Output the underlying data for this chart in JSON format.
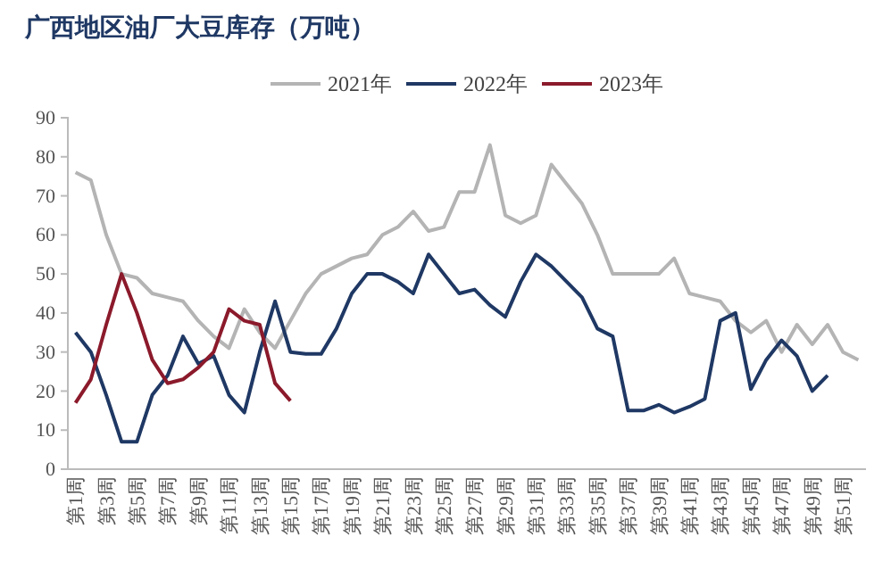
{
  "chart_data": {
    "type": "line",
    "title": "广西地区油厂大豆库存（万吨）",
    "categories": [
      "第1周",
      null,
      "第3周",
      null,
      "第5周",
      null,
      "第7周",
      null,
      "第9周",
      null,
      "第11周",
      null,
      "第13周",
      null,
      "第15周",
      null,
      "第17周",
      null,
      "第19周",
      null,
      "第21周",
      null,
      "第23周",
      null,
      "第25周",
      null,
      "第27周",
      null,
      "第29周",
      null,
      "第31周",
      null,
      "第33周",
      null,
      "第35周",
      null,
      "第37周",
      null,
      "第39周",
      null,
      "第41周",
      null,
      "第43周",
      null,
      "第45周",
      null,
      "第47周",
      null,
      "第49周",
      null,
      "第51周",
      null
    ],
    "series": [
      {
        "name": "2021年",
        "color": "#b4b4b4",
        "values": [
          76,
          74,
          60,
          50,
          49,
          45,
          44,
          43,
          38,
          34,
          31,
          41,
          35,
          31,
          38,
          45,
          50,
          52,
          54,
          55,
          60,
          62,
          66,
          61,
          62,
          71,
          71,
          83,
          65,
          63,
          65,
          78,
          73,
          68,
          60,
          50,
          50,
          50,
          50,
          54,
          45,
          44,
          43,
          38,
          35,
          38,
          30,
          37,
          32,
          37,
          30,
          28
        ]
      },
      {
        "name": "2022年",
        "color": "#1f3864",
        "values": [
          35,
          30,
          19,
          7,
          7,
          19,
          24,
          34,
          27,
          29,
          19,
          14.5,
          30,
          43,
          30,
          29.5,
          29.5,
          36,
          45,
          50,
          50,
          48,
          45,
          55,
          50,
          45,
          46,
          42,
          39,
          48,
          55,
          52,
          48,
          44,
          36,
          34,
          15,
          15,
          16.5,
          14.5,
          16,
          18,
          38,
          40,
          20.5,
          28,
          33,
          29,
          20,
          24,
          null,
          null
        ]
      },
      {
        "name": "2023年",
        "color": "#8b1a2b",
        "values": [
          17,
          23,
          37,
          50,
          40,
          28,
          22,
          23,
          26,
          30,
          41,
          38,
          37,
          22,
          17.5,
          null,
          null,
          null,
          null,
          null,
          null,
          null,
          null,
          null,
          null,
          null,
          null,
          null,
          null,
          null,
          null,
          null,
          null,
          null,
          null,
          null,
          null,
          null,
          null,
          null,
          null,
          null,
          null,
          null,
          null,
          null,
          null,
          null,
          null,
          null,
          null,
          null
        ]
      }
    ],
    "ylim": [
      0,
      90
    ],
    "yticks": [
      0,
      10,
      20,
      30,
      40,
      50,
      60,
      70,
      80,
      90
    ],
    "legend": "top",
    "grid": false,
    "marker": "none",
    "line_style": "solid"
  }
}
